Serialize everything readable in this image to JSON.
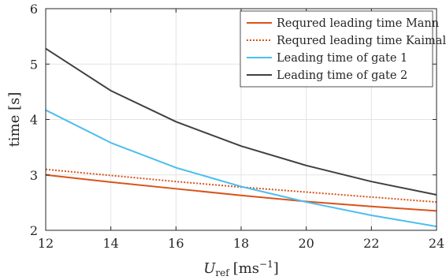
{
  "chart_data": {
    "type": "line",
    "title": "",
    "xlabel_main": "U",
    "xlabel_sub": "ref",
    "xlabel_units": "[ms",
    "xlabel_exp": "−1",
    "xlabel_close": "]",
    "ylabel": "time [s]",
    "xlim": [
      12,
      24
    ],
    "ylim": [
      2,
      6
    ],
    "xticks": [
      12,
      14,
      16,
      18,
      20,
      22,
      24
    ],
    "yticks": [
      2,
      3,
      4,
      5,
      6
    ],
    "grid": true,
    "legend_position": "top-right",
    "x": [
      12,
      14,
      16,
      18,
      20,
      22,
      24
    ],
    "series": [
      {
        "name": "Requred leading time Mann",
        "values": [
          3.0,
          2.87,
          2.75,
          2.63,
          2.52,
          2.43,
          2.35
        ],
        "color": "#d95319",
        "dash": "solid"
      },
      {
        "name": "Requred leading time Kaimal",
        "values": [
          3.1,
          2.99,
          2.88,
          2.78,
          2.69,
          2.6,
          2.51
        ],
        "color": "#d95319",
        "dash": "dotted"
      },
      {
        "name": "Leading time of gate 1",
        "values": [
          4.17,
          3.58,
          3.13,
          2.79,
          2.51,
          2.27,
          2.07
        ],
        "color": "#4dbeee",
        "dash": "solid"
      },
      {
        "name": "Leading time of gate 2",
        "values": [
          5.28,
          4.52,
          3.96,
          3.52,
          3.17,
          2.88,
          2.64
        ],
        "color": "#404040",
        "dash": "solid"
      }
    ]
  }
}
